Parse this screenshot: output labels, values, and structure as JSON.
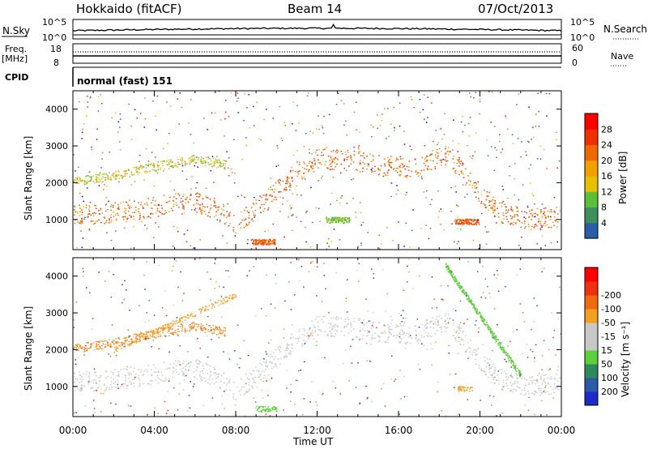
{
  "header": {
    "station": "Hokkaido (fitACF)",
    "beam": "Beam 14",
    "date": "07/Oct/2013"
  },
  "status_panel": {
    "nsky_label": "N.Sky",
    "nsky_ticks": [
      "10^5",
      "10^0"
    ],
    "nsearch_label": "N.Search",
    "nsearch_ticks": [
      "10^5",
      "10^0"
    ],
    "freq_label_1": "Freq.",
    "freq_label_2": "[MHz]",
    "freq_ticks": [
      "18",
      "8"
    ],
    "nave_label": "Nave",
    "nave_ticks": [
      "60",
      "0"
    ],
    "cpid_label": "CPID",
    "cpid_value": "normal (fast) 151"
  },
  "colors": {
    "power_scale": [
      "#0000ff",
      "#2a5ea8",
      "#3f8f5a",
      "#5ac03a",
      "#e8c000",
      "#f2a000",
      "#f06800",
      "#f03000",
      "#ff0000"
    ],
    "velocity_scale": [
      "#1c2bc8",
      "#2c5aa8",
      "#2e8a5a",
      "#5ad03a",
      "#c8c8c8",
      "#c8c8c8",
      "#f2a020",
      "#f06a10",
      "#f03010",
      "#ff0000"
    ],
    "ground_scatter": "#c8c8c8"
  },
  "chart_data": [
    {
      "type": "heatmap",
      "title": "",
      "xlabel": "Time UT",
      "ylabel": "Slant Range [km]",
      "xlim": [
        "00:00",
        "24:00"
      ],
      "ylim": [
        180,
        4500
      ],
      "x_ticks": [
        "00:00",
        "04:00",
        "08:00",
        "12:00",
        "16:00",
        "20:00",
        "00:00"
      ],
      "y_ticks": [
        1000,
        2000,
        3000,
        4000
      ],
      "colorbar": {
        "label": "Power [dB]",
        "ticks": [
          4,
          8,
          12,
          16,
          20,
          24,
          28
        ],
        "range": [
          0,
          30
        ]
      },
      "bands": [
        {
          "x": [
            0,
            1,
            2,
            3,
            4,
            5,
            6,
            7,
            8,
            9,
            10,
            11,
            12,
            13,
            14,
            15,
            16,
            17,
            18,
            18.5,
            19,
            20,
            21,
            22,
            23,
            24
          ],
          "y": [
            1150,
            1150,
            1200,
            1250,
            1350,
            1450,
            1500,
            1250,
            900,
            1300,
            1800,
            2300,
            2650,
            2650,
            2600,
            2500,
            2450,
            2400,
            2750,
            2700,
            2400,
            1700,
            1200,
            1050,
            1050,
            1100
          ],
          "width_km": 550,
          "power_db": 28
        },
        {
          "x": [
            0,
            2,
            4,
            6,
            7.5
          ],
          "y": [
            2050,
            2200,
            2450,
            2650,
            2500
          ],
          "width_km": 250,
          "power_db": 20
        }
      ],
      "patches": [
        {
          "time": "13:00",
          "range": 1000,
          "power_db": 10
        },
        {
          "time": "19:20",
          "range": 950,
          "power_db": 22
        },
        {
          "time": "09:20",
          "range": 400,
          "power_db": 22
        }
      ]
    },
    {
      "type": "heatmap",
      "title": "",
      "xlabel": "Time UT",
      "ylabel": "Slant Range [km]",
      "xlim": [
        "00:00",
        "24:00"
      ],
      "ylim": [
        180,
        4500
      ],
      "x_ticks": [
        "00:00",
        "04:00",
        "08:00",
        "12:00",
        "16:00",
        "20:00",
        "00:00"
      ],
      "y_ticks": [
        1000,
        2000,
        3000,
        4000
      ],
      "colorbar": {
        "label": "Velocity [m s⁻¹]",
        "ticks": [
          200,
          100,
          50,
          15,
          -15,
          -50,
          -100,
          -200
        ],
        "range": [
          -250,
          250
        ]
      },
      "dominant_value": "ground scatter (grey)",
      "patches": [
        {
          "time": "18:30-22:00",
          "range": "4300-1300",
          "velocity": 40
        },
        {
          "time": "09:30",
          "range": 400,
          "velocity": 50
        },
        {
          "time": "19:20",
          "range": 950,
          "velocity": -70
        },
        {
          "time": "02:00-08:00",
          "range": "2000-3500",
          "velocity": -50
        }
      ]
    }
  ]
}
